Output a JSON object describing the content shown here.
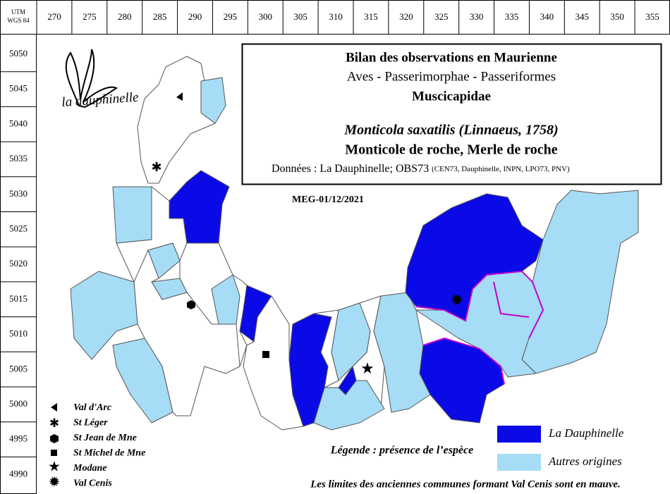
{
  "grid": {
    "corner": [
      "UTM",
      "WGS 84"
    ],
    "x_labels": [
      270,
      275,
      280,
      285,
      290,
      295,
      300,
      305,
      310,
      315,
      320,
      325,
      330,
      335,
      340,
      345,
      350,
      355
    ],
    "y_labels": [
      5050,
      5045,
      5040,
      5035,
      5030,
      5025,
      5020,
      5015,
      5010,
      5005,
      5000,
      4995,
      4990
    ]
  },
  "title_box": {
    "line1": "Bilan des observations en Maurienne",
    "line2": "Aves - Passerimorphae - Passeriformes",
    "line3": "Muscicapidae",
    "species": "Monticola saxatilis (Linnaeus, 1758)",
    "common_name": "Monticole de roche, Merle de roche",
    "source": "Données : La Dauphinelle; OBS73",
    "source_detail": "(CEN73, Dauphinelle, INPN, LPO73, PNV)"
  },
  "logo": "la dauphinelle",
  "reference": "MEG-01/12/2021",
  "places": [
    "Val d'Arc",
    "St Léger",
    "St Jean de Mne",
    "St Michel de Mne",
    "Modane",
    "Val Cenis"
  ],
  "legend": {
    "title": "Légende : présence de l’espèce",
    "items": [
      {
        "label": "La Dauphinelle",
        "color": "#0a0ae6"
      },
      {
        "label": "Autres origines",
        "color": "#a6dcf5"
      }
    ]
  },
  "note": "Les limites des anciennes communes formant Val Cenis sont en mauve."
}
